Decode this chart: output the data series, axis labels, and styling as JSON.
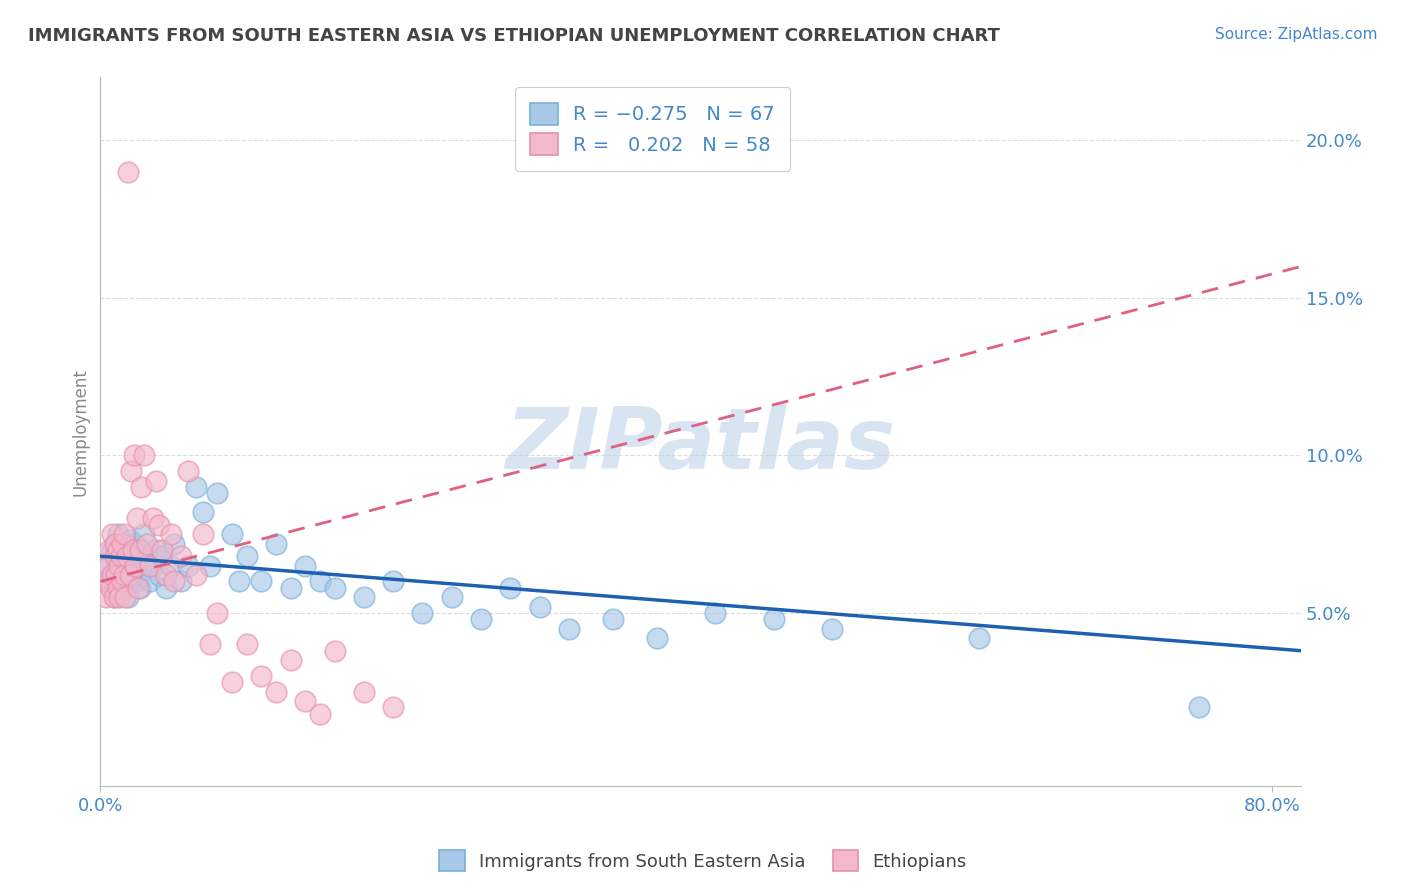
{
  "title": "IMMIGRANTS FROM SOUTH EASTERN ASIA VS ETHIOPIAN UNEMPLOYMENT CORRELATION CHART",
  "source": "Source: ZipAtlas.com",
  "ylabel": "Unemployment",
  "watermark": "ZIPatlas",
  "xlim": [
    0.0,
    0.82
  ],
  "ylim": [
    -0.005,
    0.22
  ],
  "yticks": [
    0.05,
    0.1,
    0.15,
    0.2
  ],
  "xticks": [
    0.0,
    0.8
  ],
  "xtick_labels": [
    "0.0%",
    "80.0%"
  ],
  "ytick_labels": [
    "5.0%",
    "10.0%",
    "15.0%",
    "20.0%"
  ],
  "blue_color": "#a8c8e8",
  "pink_color": "#f4b8cc",
  "blue_edge_color": "#7ab0d8",
  "pink_edge_color": "#e890aa",
  "blue_line_color": "#2060b0",
  "pink_line_color": "#e06080",
  "legend_text_color": "#4488cc",
  "title_color": "#444444",
  "axis_color": "#bbbbbb",
  "grid_color": "#dddddd",
  "blue_scatter_x": [
    0.005,
    0.007,
    0.008,
    0.009,
    0.01,
    0.01,
    0.011,
    0.012,
    0.013,
    0.014,
    0.015,
    0.015,
    0.016,
    0.017,
    0.018,
    0.018,
    0.019,
    0.02,
    0.02,
    0.021,
    0.022,
    0.023,
    0.024,
    0.025,
    0.026,
    0.027,
    0.028,
    0.03,
    0.032,
    0.034,
    0.036,
    0.038,
    0.04,
    0.042,
    0.045,
    0.048,
    0.05,
    0.055,
    0.06,
    0.065,
    0.07,
    0.075,
    0.08,
    0.09,
    0.095,
    0.1,
    0.11,
    0.12,
    0.13,
    0.14,
    0.15,
    0.16,
    0.18,
    0.2,
    0.22,
    0.24,
    0.26,
    0.28,
    0.3,
    0.32,
    0.35,
    0.38,
    0.42,
    0.46,
    0.5,
    0.6,
    0.75
  ],
  "blue_scatter_y": [
    0.065,
    0.062,
    0.07,
    0.058,
    0.072,
    0.055,
    0.068,
    0.075,
    0.06,
    0.066,
    0.063,
    0.07,
    0.058,
    0.072,
    0.06,
    0.065,
    0.055,
    0.068,
    0.073,
    0.06,
    0.065,
    0.07,
    0.072,
    0.06,
    0.065,
    0.058,
    0.07,
    0.075,
    0.068,
    0.06,
    0.065,
    0.07,
    0.062,
    0.068,
    0.058,
    0.065,
    0.072,
    0.06,
    0.065,
    0.09,
    0.082,
    0.065,
    0.088,
    0.075,
    0.06,
    0.068,
    0.06,
    0.072,
    0.058,
    0.065,
    0.06,
    0.058,
    0.055,
    0.06,
    0.05,
    0.055,
    0.048,
    0.058,
    0.052,
    0.045,
    0.048,
    0.042,
    0.05,
    0.048,
    0.045,
    0.042,
    0.02
  ],
  "pink_scatter_x": [
    0.003,
    0.004,
    0.005,
    0.006,
    0.007,
    0.008,
    0.008,
    0.009,
    0.01,
    0.01,
    0.011,
    0.012,
    0.012,
    0.013,
    0.013,
    0.014,
    0.015,
    0.015,
    0.016,
    0.016,
    0.017,
    0.018,
    0.019,
    0.02,
    0.021,
    0.022,
    0.023,
    0.024,
    0.025,
    0.026,
    0.027,
    0.028,
    0.03,
    0.032,
    0.034,
    0.036,
    0.038,
    0.04,
    0.042,
    0.045,
    0.048,
    0.05,
    0.055,
    0.06,
    0.065,
    0.07,
    0.075,
    0.08,
    0.09,
    0.1,
    0.11,
    0.12,
    0.13,
    0.14,
    0.15,
    0.16,
    0.18,
    0.2
  ],
  "pink_scatter_y": [
    0.06,
    0.055,
    0.065,
    0.07,
    0.058,
    0.075,
    0.062,
    0.055,
    0.068,
    0.072,
    0.062,
    0.058,
    0.07,
    0.065,
    0.055,
    0.068,
    0.072,
    0.06,
    0.062,
    0.075,
    0.055,
    0.068,
    0.19,
    0.062,
    0.095,
    0.07,
    0.1,
    0.065,
    0.08,
    0.058,
    0.07,
    0.09,
    0.1,
    0.072,
    0.065,
    0.08,
    0.092,
    0.078,
    0.07,
    0.062,
    0.075,
    0.06,
    0.068,
    0.095,
    0.062,
    0.075,
    0.04,
    0.05,
    0.028,
    0.04,
    0.03,
    0.025,
    0.035,
    0.022,
    0.018,
    0.038,
    0.025,
    0.02
  ],
  "blue_trend_x": [
    0.0,
    0.82
  ],
  "blue_trend_y": [
    0.068,
    0.038
  ],
  "pink_trend_x": [
    0.0,
    0.82
  ],
  "pink_trend_y": [
    0.06,
    0.16
  ],
  "bg_color": "#ffffff"
}
